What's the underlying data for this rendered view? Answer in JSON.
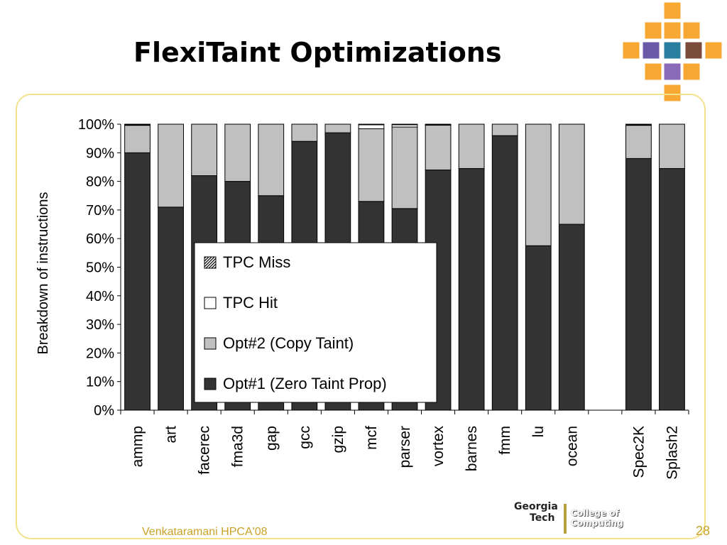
{
  "slide": {
    "title": "FlexiTaint Optimizations",
    "footer_left": "Venkataramani HPCA'08",
    "page_number": "28",
    "logo": {
      "line1": "Georgia",
      "line2": "Tech",
      "text1": "College of",
      "text2": "Computing"
    }
  },
  "colors": {
    "opt1": "#333333",
    "opt2": "#c0c0c0",
    "tpc_hit": "#ffffff",
    "tpc_miss_hatch": "#000000",
    "accent_orange": "#f7a833",
    "frame": "#f3e28a",
    "footer": "#c9a227"
  },
  "chart_data": {
    "type": "bar",
    "stacked": true,
    "percent": true,
    "title": "",
    "xlabel": "",
    "ylabel": "Breakdown of instructions",
    "ylim": [
      0,
      100
    ],
    "yticks": [
      "0%",
      "10%",
      "20%",
      "30%",
      "40%",
      "50%",
      "60%",
      "70%",
      "80%",
      "90%",
      "100%"
    ],
    "categories": [
      "ammp",
      "art",
      "facerec",
      "fma3d",
      "gap",
      "gcc",
      "gzip",
      "mcf",
      "parser",
      "vortex",
      "barnes",
      "fmm",
      "lu",
      "ocean",
      "",
      "Spec2K",
      "Splash2"
    ],
    "series": [
      {
        "name": "Opt#1 (Zero Taint Prop)",
        "values": [
          90,
          71,
          82,
          80,
          75,
          94,
          97,
          73,
          70.5,
          84,
          84.5,
          96,
          57.5,
          65,
          0,
          88,
          84.5
        ]
      },
      {
        "name": "Opt#2 (Copy Taint)",
        "values": [
          9.6,
          29,
          18,
          20,
          25,
          6,
          3,
          25.4,
          28.5,
          15.7,
          15.5,
          4,
          42.5,
          35,
          0,
          11.6,
          15.5
        ]
      },
      {
        "name": "TPC Hit",
        "values": [
          0.2,
          0,
          0,
          0,
          0,
          0,
          0,
          1.4,
          0.8,
          0.1,
          0,
          0,
          0,
          0,
          0,
          0.2,
          0
        ]
      },
      {
        "name": "TPC Miss",
        "values": [
          0.2,
          0,
          0,
          0,
          0,
          0,
          0,
          0.2,
          0.2,
          0.2,
          0,
          0,
          0,
          0,
          0,
          0.2,
          0
        ]
      }
    ],
    "legend": {
      "placement": "center",
      "order": [
        "TPC Miss",
        "TPC Hit",
        "Opt#2 (Copy Taint)",
        "Opt#1 (Zero Taint Prop)"
      ]
    },
    "grid": false
  }
}
